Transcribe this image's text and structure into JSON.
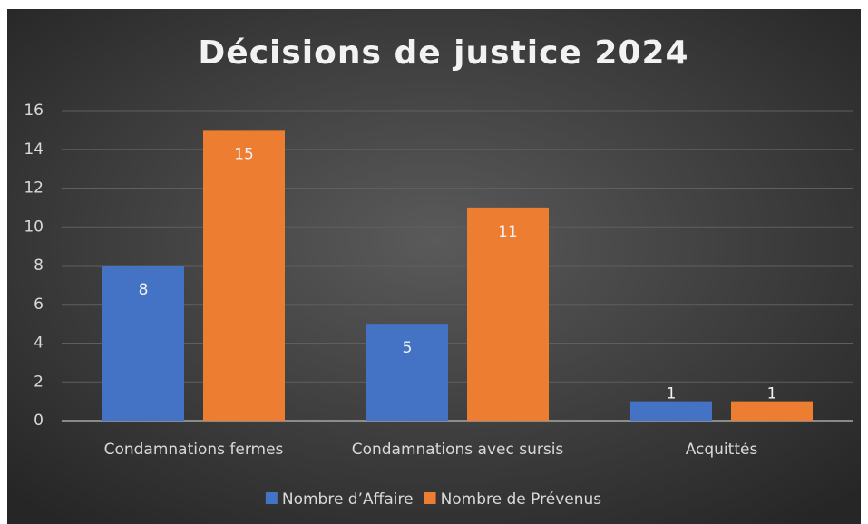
{
  "chart_data": {
    "type": "bar",
    "title": "Décisions de justice 2024",
    "categories": [
      "Condamnations fermes",
      "Condamnations avec sursis",
      "Acquittés"
    ],
    "series": [
      {
        "name": "Nombre d’Affaire",
        "color": "#4472c4",
        "values": [
          8,
          5,
          1
        ]
      },
      {
        "name": "Nombre de Prévenus",
        "color": "#ed7d31",
        "values": [
          15,
          11,
          1
        ]
      }
    ],
    "ylim": [
      0,
      16
    ],
    "yticks": [
      0,
      2,
      4,
      6,
      8,
      10,
      12,
      14,
      16
    ],
    "grid": true,
    "legend": "bottom"
  }
}
